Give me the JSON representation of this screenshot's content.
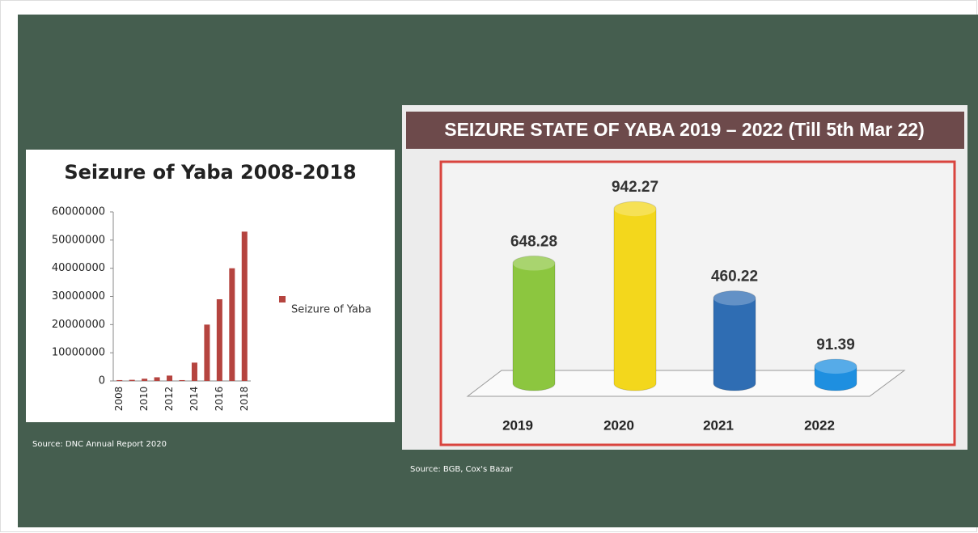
{
  "chart_data": [
    {
      "type": "bar",
      "title": "Seizure of Yaba 2008-2018",
      "categories": [
        "2008",
        null,
        "2010",
        null,
        "2012",
        null,
        "2014",
        null,
        "2016",
        null,
        "2018"
      ],
      "series": [
        {
          "name": "Seizure of Yaba",
          "color": "#b5443f",
          "values": [
            300000,
            400000,
            800000,
            1300000,
            1900000,
            300000,
            6500000,
            20000000,
            29000000,
            40000000,
            53000000
          ]
        }
      ],
      "ylim": [
        0,
        60000000
      ],
      "yticks": [
        0,
        10000000,
        20000000,
        30000000,
        40000000,
        50000000,
        60000000
      ],
      "grid": false,
      "legend": "right",
      "source": "Source: DNC Annual Report 2020"
    },
    {
      "type": "cylinder",
      "title": "SEIZURE STATE OF YABA 2019 – 2022 (Till 5th Mar 22)",
      "categories": [
        "2019",
        "2020",
        "2021",
        "2022"
      ],
      "values": [
        648.28,
        942.27,
        460.22,
        91.39
      ],
      "colors": [
        "#8cc63f",
        "#f3d71c",
        "#2f6db3",
        "#1e8fe0"
      ],
      "source": "Source: BGB, Cox's Bazar"
    }
  ]
}
